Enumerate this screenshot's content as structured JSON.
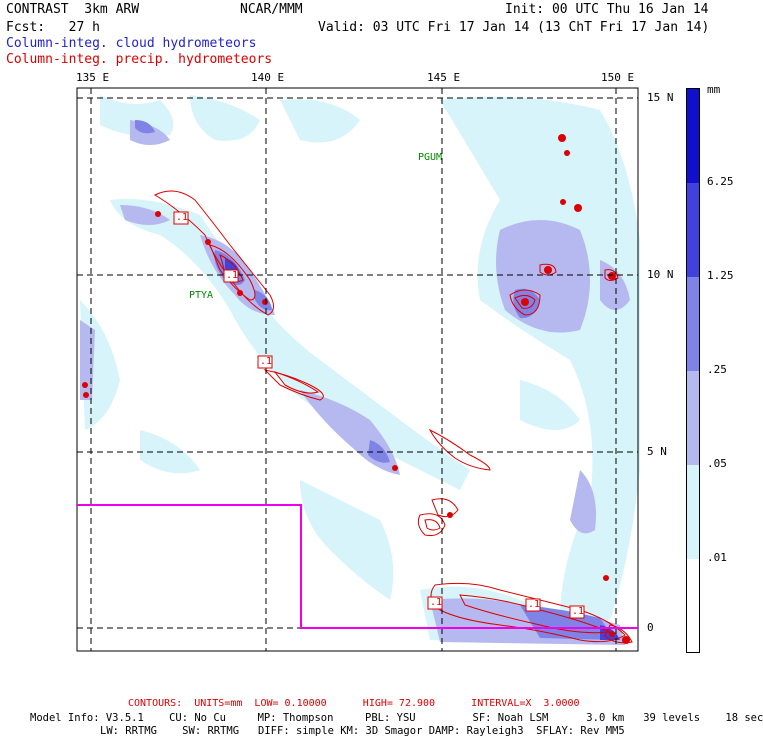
{
  "header": {
    "model": "CONTRAST  3km ARW",
    "org": "NCAR/MMM",
    "init": "Init: 00 UTC Thu 16 Jan 14",
    "fcst": "Fcst:   27 h",
    "valid": "Valid: 03 UTC Fri 17 Jan 14 (13 ChT Fri 17 Jan 14)",
    "field1": "Column-integ. cloud hydrometeors",
    "field2": "Column-integ. precip. hydrometeors"
  },
  "map": {
    "lon_labels": [
      "135 E",
      "140 E",
      "145 E",
      "150 E"
    ],
    "lat_labels": [
      "15 N",
      "10 N",
      "5 N",
      "0"
    ],
    "place_labels": [
      "PGUM",
      "PTYA"
    ],
    "contour_box_labels": [
      ".1",
      ".1",
      ".1",
      ".1",
      ".1",
      ".1"
    ],
    "colors": {
      "light": "#d6f4f9",
      "mid1": "#b5b9f0",
      "mid2": "#7f83e6",
      "dark1": "#4141dc",
      "dark2": "#1010cc",
      "precip": "#dd0000",
      "domain_box": "#ee00ee"
    }
  },
  "legend": {
    "unit": "mm",
    "labels": [
      "6.25",
      "1.25",
      ".25",
      ".05",
      ".01"
    ],
    "colors": [
      "#1010cc",
      "#4141dc",
      "#7f83e6",
      "#b5b9f0",
      "#d6f4f9",
      "#ffffff"
    ]
  },
  "footer": {
    "contours": "CONTOURS:  UNITS=mm  LOW= 0.10000      HIGH= 72.900      INTERVAL=X  3.0000",
    "model_info_1": "Model Info: V3.5.1    CU: No Cu     MP: Thompson     PBL: YSU         SF: Noah LSM      3.0 km   39 levels    18 sec",
    "model_info_2": "LW: RRTMG    SW: RRTMG   DIFF: simple KM: 3D Smagor DAMP: Rayleigh3  SFLAY: Rev MM5"
  }
}
